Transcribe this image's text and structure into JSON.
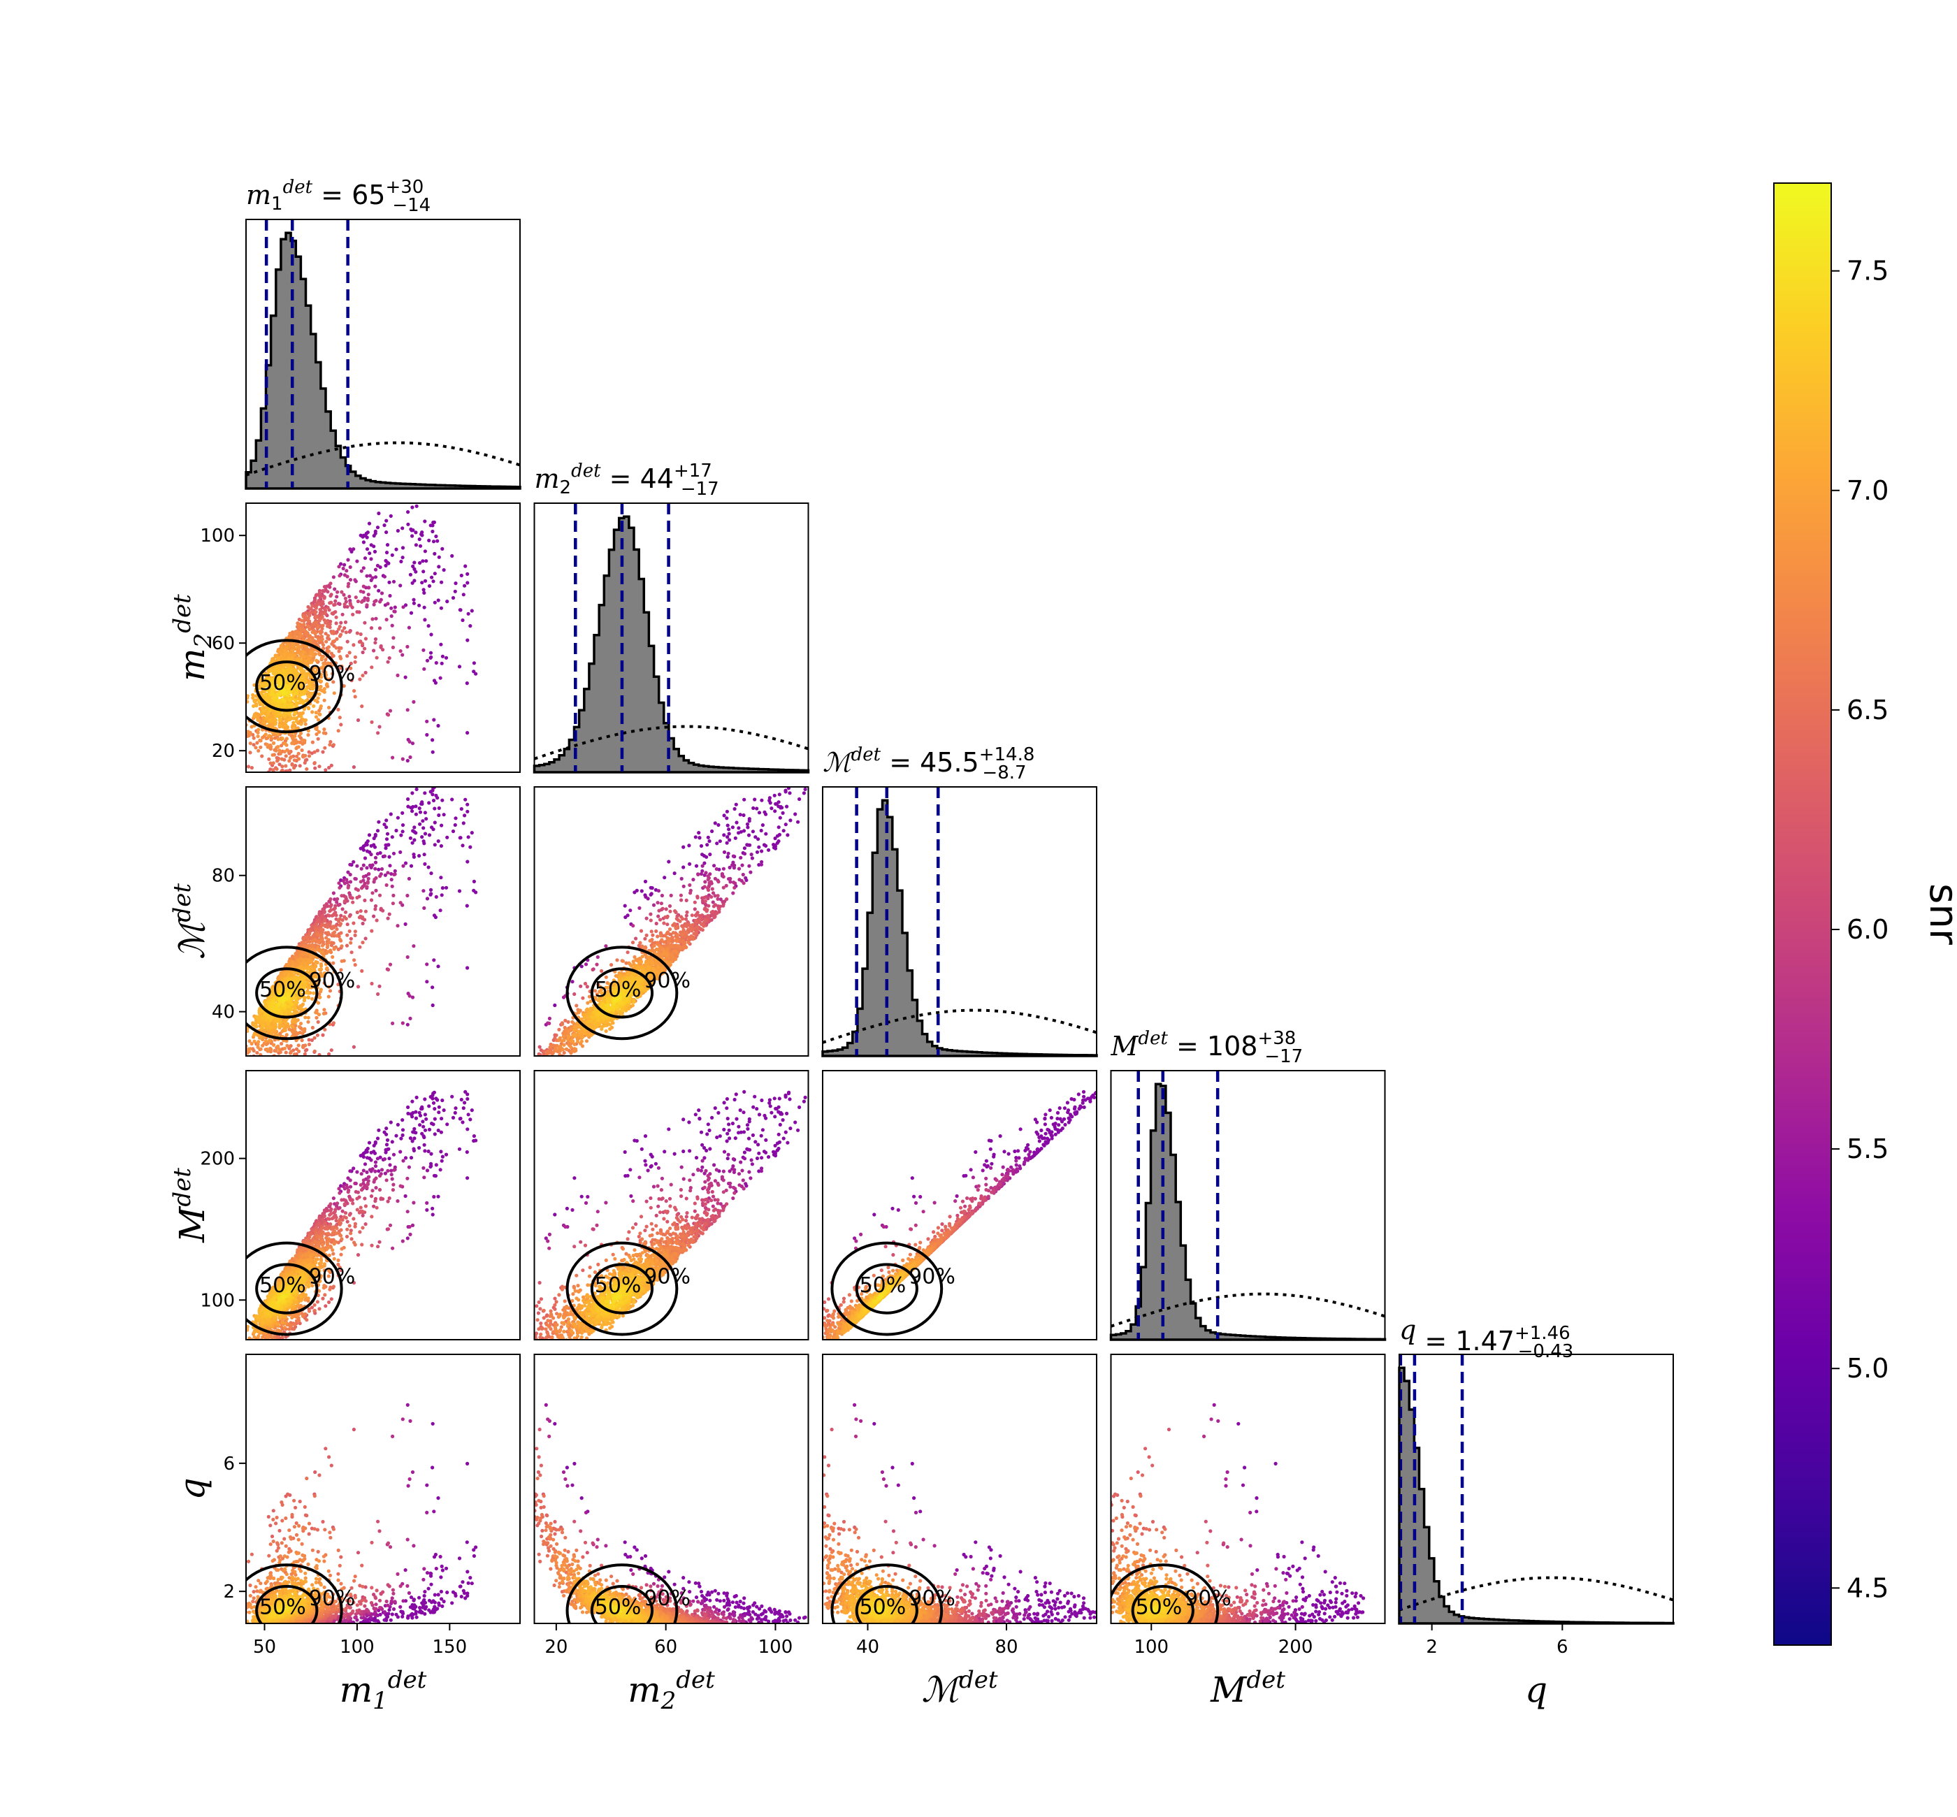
{
  "chart_data": {
    "type": "corner",
    "colormap": "plasma",
    "colorbar": {
      "label": "snr",
      "range": [
        4.37,
        7.7
      ],
      "ticks": [
        "4.5",
        "5.0",
        "5.5",
        "6.0",
        "6.5",
        "7.0",
        "7.5"
      ],
      "tick_values": [
        4.5,
        5.0,
        5.5,
        6.0,
        6.5,
        7.0,
        7.5
      ]
    },
    "params": [
      {
        "key": "m1",
        "sym": "m",
        "sub": "1",
        "sup": "det",
        "axis_label": "m1^det",
        "title_value": "65",
        "title_plus": "+30",
        "title_minus": "−14",
        "range": [
          40,
          188
        ],
        "ticks": [
          50,
          100,
          150
        ],
        "tick_labels": [
          "50",
          "100",
          "150"
        ],
        "quantiles": [
          51,
          65,
          95
        ],
        "posterior_peak": 62,
        "posterior_width_low": 8,
        "posterior_width_high": 14
      },
      {
        "key": "m2",
        "sym": "m",
        "sub": "2",
        "sup": "det",
        "axis_label": "m2^det",
        "title_value": "44",
        "title_plus": "+17",
        "title_minus": "−17",
        "range": [
          12,
          112
        ],
        "ticks": [
          20,
          60,
          100
        ],
        "tick_labels": [
          "20",
          "60",
          "100"
        ],
        "quantiles": [
          27,
          44,
          61
        ],
        "posterior_peak": 45,
        "posterior_width_low": 9,
        "posterior_width_high": 8
      },
      {
        "key": "Mc",
        "sym": "ℳ",
        "sub": "",
        "sup": "det",
        "axis_label": "Mc^det",
        "title_value": "45.5",
        "title_plus": "+14.8",
        "title_minus": "−8.7",
        "range": [
          27,
          106
        ],
        "ticks": [
          40,
          80
        ],
        "tick_labels": [
          "40",
          "80"
        ],
        "quantiles": [
          36.8,
          45.5,
          60.3
        ],
        "posterior_peak": 44.5,
        "posterior_width_low": 3.5,
        "posterior_width_high": 5
      },
      {
        "key": "Mtot",
        "sym": "M",
        "sub": "",
        "sup": "det",
        "axis_label": "M^det",
        "title_value": "108",
        "title_plus": "+38",
        "title_minus": "−17",
        "range": [
          72,
          262
        ],
        "ticks": [
          100,
          200
        ],
        "tick_labels": [
          "100",
          "200"
        ],
        "quantiles": [
          91,
          108,
          146
        ],
        "posterior_peak": 106,
        "posterior_width_low": 7,
        "posterior_width_high": 11
      },
      {
        "key": "q",
        "sym": "q",
        "sub": "",
        "sup": "",
        "axis_label": "q",
        "title_value": "1.47",
        "title_plus": "+1.46",
        "title_minus": "−0.43",
        "range": [
          1,
          9.4
        ],
        "ticks": [
          2,
          6
        ],
        "tick_labels": [
          "2",
          "6"
        ],
        "quantiles": [
          1.04,
          1.47,
          2.93
        ],
        "posterior_peak": 1.05,
        "posterior_width_low": 0.2,
        "posterior_width_high": 0.55
      }
    ],
    "row_tick_labels": {
      "m2": [
        "20",
        "60",
        "100"
      ],
      "Mc": [
        "40",
        "80"
      ],
      "Mtot": [
        "100",
        "200"
      ],
      "q": [
        "2",
        "6"
      ]
    },
    "contour_levels": [
      "50%",
      "90%"
    ],
    "legend": "none",
    "grid": false
  }
}
